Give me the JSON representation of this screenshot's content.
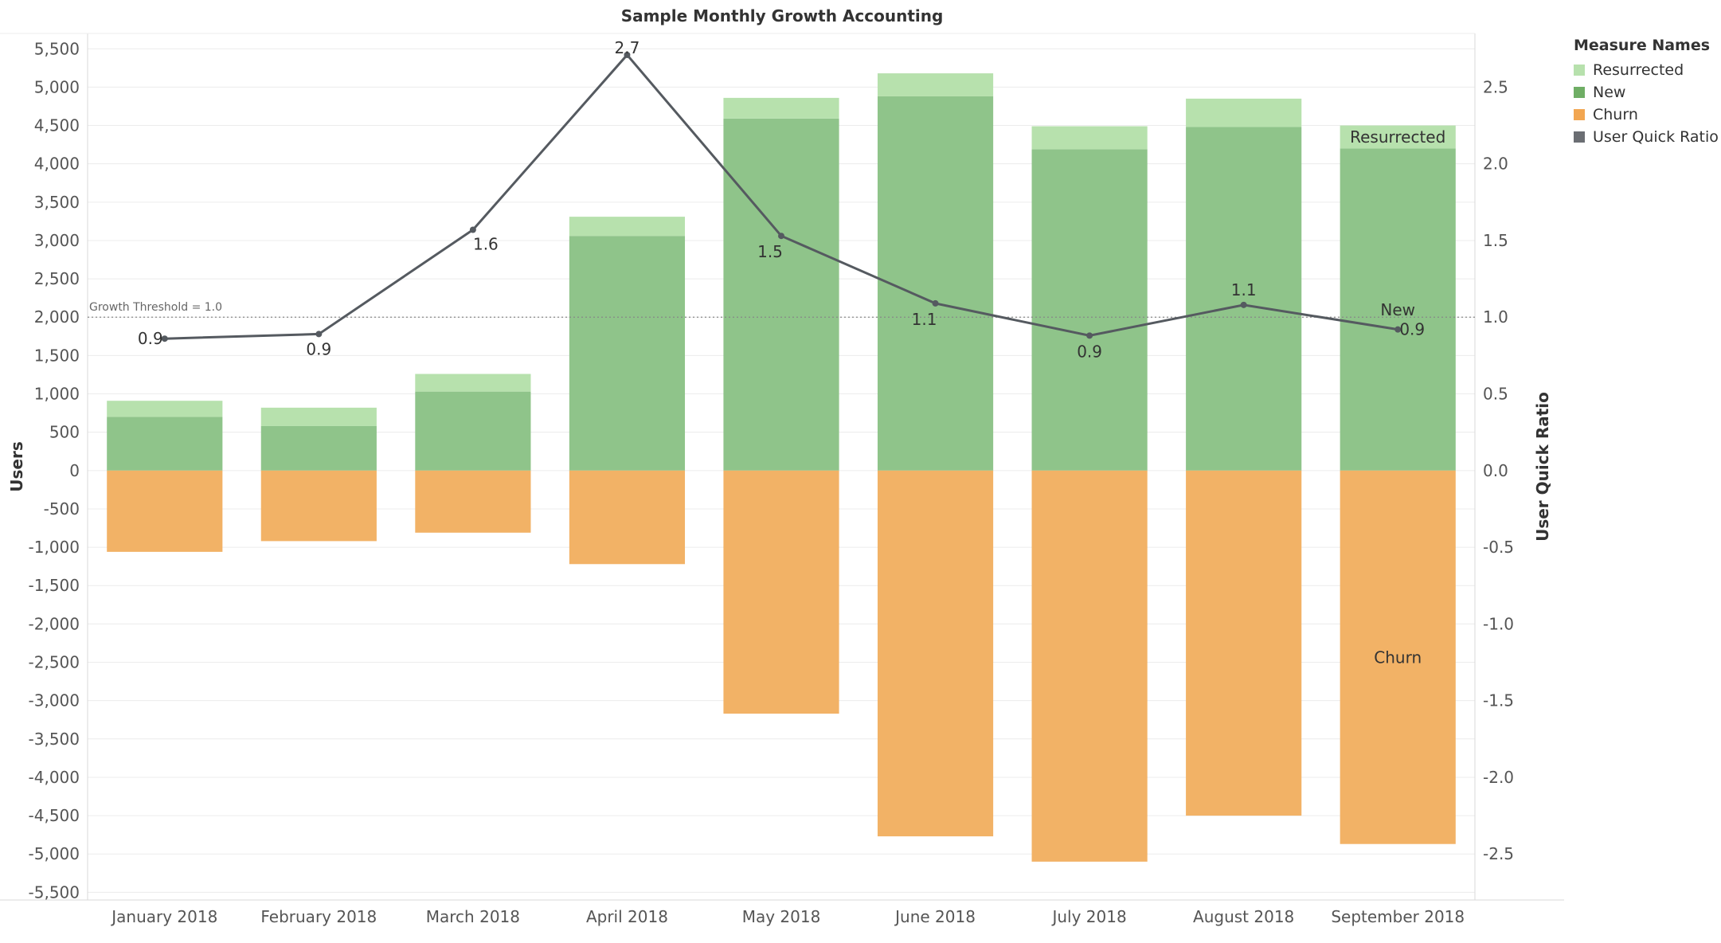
{
  "chart_data": {
    "type": "bar",
    "title": "Sample Monthly Growth Accounting",
    "categories": [
      "January 2018",
      "February 2018",
      "March 2018",
      "April 2018",
      "May 2018",
      "June 2018",
      "July 2018",
      "August 2018",
      "September 2018"
    ],
    "series": [
      {
        "name": "New",
        "type": "bar",
        "axis": "left",
        "color": "#8fc48a",
        "values": [
          700,
          580,
          1030,
          3060,
          4590,
          4880,
          4190,
          4480,
          4200
        ]
      },
      {
        "name": "Resurrected",
        "type": "bar",
        "axis": "left",
        "color": "#b7e1ad",
        "values": [
          210,
          240,
          230,
          250,
          270,
          300,
          300,
          370,
          300
        ]
      },
      {
        "name": "Churn",
        "type": "bar",
        "axis": "left",
        "color": "#f2b266",
        "values": [
          -1060,
          -920,
          -810,
          -1220,
          -3170,
          -4770,
          -5100,
          -4500,
          -4870
        ]
      },
      {
        "name": "User Quick Ratio",
        "type": "line",
        "axis": "right",
        "color": "#555a60",
        "values": [
          0.86,
          0.89,
          1.57,
          2.71,
          1.53,
          1.09,
          0.88,
          1.08,
          0.92
        ],
        "labels": [
          "0.9",
          "0.9",
          "1.6",
          "2.7",
          "1.5",
          "1.1",
          "0.9",
          "1.1",
          "0.9"
        ]
      }
    ],
    "ylabel": "Users",
    "y2label": "User Quick Ratio",
    "ylim": [
      -5600,
      5700
    ],
    "y2lim": [
      -2.8,
      2.85
    ],
    "yticks": [
      5500,
      5000,
      4500,
      4000,
      3500,
      3000,
      2500,
      2000,
      1500,
      1000,
      500,
      0,
      -500,
      -1000,
      -1500,
      -2000,
      -2500,
      -3000,
      -3500,
      -4000,
      -4500,
      -5000,
      -5500
    ],
    "y2ticks": [
      2.5,
      2.0,
      1.5,
      1.0,
      0.5,
      0.0,
      -0.5,
      -1.0,
      -1.5,
      -2.0,
      -2.5
    ],
    "reference_line": {
      "label": "Growth Threshold = 1.0",
      "value": 1.0
    },
    "annotations": [
      {
        "text": "Resurrected",
        "category": "September 2018",
        "series": "Resurrected"
      },
      {
        "text": "New",
        "category": "September 2018",
        "series": "New"
      },
      {
        "text": "Churn",
        "category": "September 2018",
        "series": "Churn"
      }
    ],
    "legend": {
      "title": "Measure Names",
      "position": "right",
      "items": [
        {
          "label": "Resurrected",
          "color": "#b7e1ad"
        },
        {
          "label": "New",
          "color": "#6fae65"
        },
        {
          "label": "Churn",
          "color": "#f2a651"
        },
        {
          "label": "User Quick Ratio",
          "color": "#6b6e73"
        }
      ]
    },
    "grid": true
  }
}
